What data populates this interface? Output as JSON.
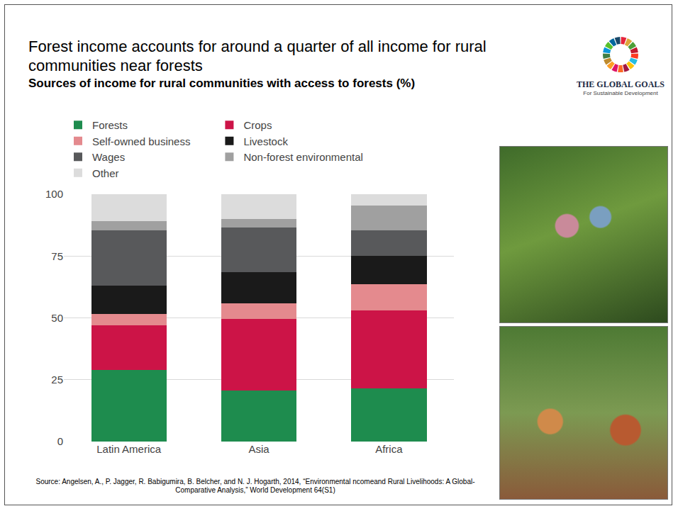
{
  "chart_data": {
    "type": "bar",
    "title": "Forest income accounts for around a quarter of all income for rural communities near forests",
    "subtitle": "Sources of income for rural communities with access to forests (%)",
    "categories": [
      "Latin America",
      "Asia",
      "Africa"
    ],
    "series": [
      {
        "name": "Forests",
        "color": "#1e8c4e",
        "values": [
          29,
          20.5,
          21.5
        ]
      },
      {
        "name": "Crops",
        "color": "#cc1447",
        "values": [
          18,
          29,
          31.5
        ]
      },
      {
        "name": "Self-owned business",
        "color": "#e48a8e",
        "values": [
          4.5,
          6.5,
          10.5
        ]
      },
      {
        "name": "Livestock",
        "color": "#1a1a1a",
        "values": [
          11.5,
          12.5,
          11.5
        ]
      },
      {
        "name": "Wages",
        "color": "#58595b",
        "values": [
          22.5,
          18,
          10.5
        ]
      },
      {
        "name": "Non-forest environmental",
        "color": "#a0a0a0",
        "values": [
          3.5,
          3.5,
          10
        ]
      },
      {
        "name": "Other",
        "color": "#dcdcdc",
        "values": [
          11,
          10,
          4.5
        ]
      }
    ],
    "stacked": true,
    "ylim": [
      0,
      100
    ],
    "yticks": [
      0,
      25,
      50,
      75,
      100
    ],
    "grid": true,
    "legend": "top"
  },
  "logo": {
    "title": "THE GLOBAL GOALS",
    "subtitle": "For Sustainable Development"
  },
  "source": "Source: Angelsen, A., P. Jagger, R. Babigumira, B. Belcher, and N. J. Hogarth, 2014, “Environmental ncomeand Rural Livelihoods: A Global-Comparative Analysis,” World Development 64(S1)"
}
